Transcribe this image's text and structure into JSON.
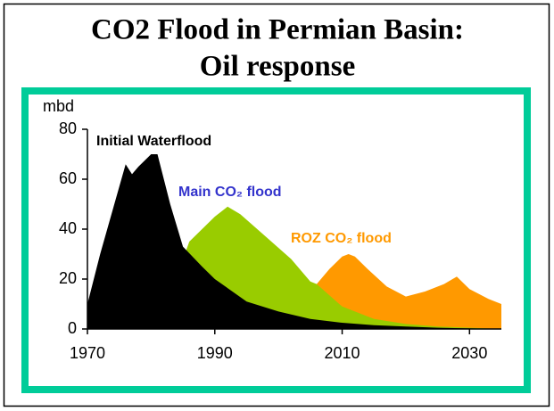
{
  "chart_data": {
    "type": "area",
    "title": [
      "CO2 Flood in Permian Basin:",
      "Oil response"
    ],
    "ylabel": "mbd",
    "xlim": [
      1970,
      2035
    ],
    "xticks": [
      1970,
      1990,
      2010,
      2030
    ],
    "ylim": [
      0,
      80
    ],
    "yticks": [
      0,
      20,
      40,
      60,
      80
    ],
    "series": [
      {
        "name": "ROZ CO₂ flood",
        "color": "#ff9900",
        "label_color": "#ff9900",
        "x": [
          2005,
          2006,
          2008,
          2010,
          2011,
          2012,
          2014,
          2017,
          2020,
          2023,
          2026,
          2028,
          2030,
          2033,
          2035
        ],
        "values": [
          16,
          18,
          24,
          29,
          30,
          29,
          24,
          17,
          13,
          15,
          18,
          21,
          16,
          12,
          10
        ]
      },
      {
        "name": "Main CO₂ flood",
        "color": "#99cc00",
        "label_color": "#3333cc",
        "x": [
          1985,
          1986,
          1988,
          1990,
          1992,
          1994,
          1998,
          2002,
          2005,
          2006,
          2010,
          2015,
          2020,
          2025,
          2035
        ],
        "values": [
          28,
          35,
          40,
          45,
          49,
          46,
          37,
          28,
          19,
          18,
          9,
          4,
          2,
          1,
          0
        ]
      },
      {
        "name": "Initial Waterflood",
        "color": "#000000",
        "label_color": "#000000",
        "x": [
          1970,
          1972,
          1974,
          1976,
          1977,
          1978,
          1980,
          1981,
          1983,
          1985,
          1988,
          1990,
          1995,
          2000,
          2005,
          2010,
          2015,
          2020,
          2025,
          2035
        ],
        "values": [
          10,
          30,
          48,
          66,
          62,
          65,
          70,
          70,
          50,
          33,
          25,
          20,
          11,
          7,
          4,
          2.5,
          1.5,
          1,
          0.5,
          0
        ]
      }
    ]
  }
}
